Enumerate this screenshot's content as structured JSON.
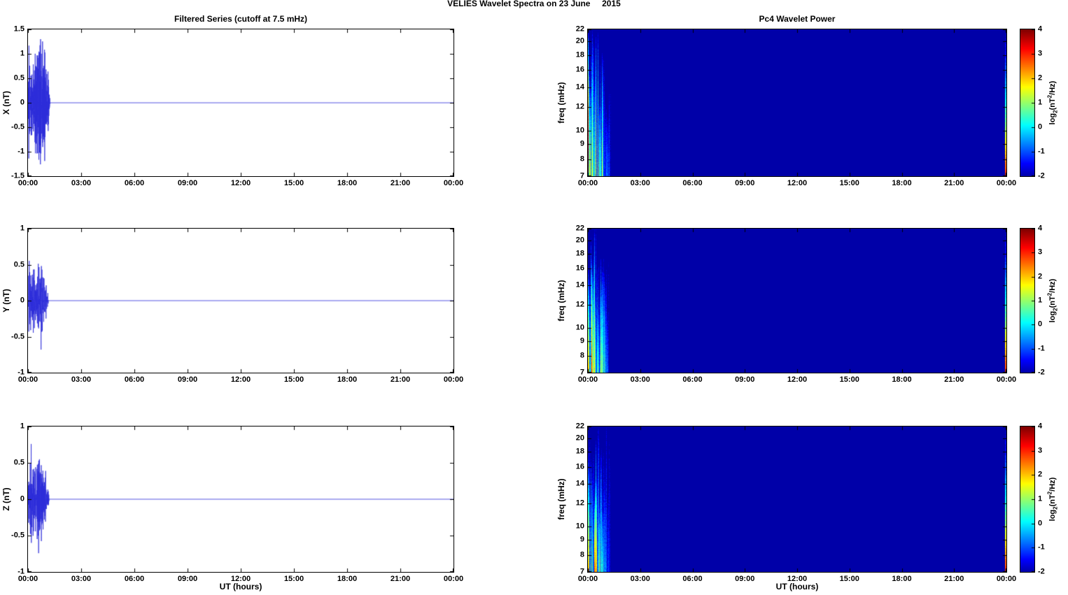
{
  "title": "VELIES Wavelet Spectra on 23 June     2015",
  "colors": {
    "line": "#2c2cd9",
    "axis": "#000000",
    "background": "#ffffff",
    "spectrogram_background": "#0000a8"
  },
  "colorbar": {
    "colormap": "jet",
    "clim": [
      -2,
      4
    ],
    "ticks": [
      4,
      3,
      2,
      1,
      0,
      -1,
      -2
    ],
    "tick_labels": [
      "4",
      "3",
      "2",
      "1",
      "0",
      "-1",
      "-2"
    ],
    "label_parts": {
      "pre": "log",
      "sub": "2",
      "mid": "(nT",
      "sup": "2",
      "post": "/Hz)"
    }
  },
  "chart_data": [
    {
      "id": "x-filtered-series",
      "type": "line",
      "title": "Filtered Series (cutoff at 7.5 mHz)",
      "ylabel": "X (nT)",
      "xlabel": "",
      "ylim": [
        -1.5,
        1.5
      ],
      "yticks": [
        1.5,
        1,
        0.5,
        0,
        -0.5,
        -1,
        -1.5
      ],
      "ytick_labels": [
        "1.5",
        "1",
        "0.5",
        "0",
        "-0.5",
        "-1",
        "-1.5"
      ],
      "x_hours": [
        0,
        24
      ],
      "xticks_hours": [
        0,
        3,
        6,
        9,
        12,
        15,
        18,
        21,
        24
      ],
      "xtick_labels": [
        "00:00",
        "03:00",
        "06:00",
        "09:00",
        "12:00",
        "15:00",
        "18:00",
        "21:00",
        "00:00"
      ],
      "burst": {
        "start_h": 0,
        "end_h": 1.25,
        "peak_nT": 1.3
      },
      "description": "Band-pass filtered X component: noisy Pc4 wave burst from 00:00 to about 01:15 UT, peak amplitude about +1.05 / -1.3 nT, exactly zero for the rest of the day"
    },
    {
      "id": "y-filtered-series",
      "type": "line",
      "title": "",
      "ylabel": "Y (nT)",
      "xlabel": "",
      "ylim": [
        -1,
        1
      ],
      "yticks": [
        1,
        0.5,
        0,
        -0.5,
        -1
      ],
      "ytick_labels": [
        "1",
        "0.5",
        "0",
        "-0.5",
        "-1"
      ],
      "x_hours": [
        0,
        24
      ],
      "xticks_hours": [
        0,
        3,
        6,
        9,
        12,
        15,
        18,
        21,
        24
      ],
      "xtick_labels": [
        "00:00",
        "03:00",
        "06:00",
        "09:00",
        "12:00",
        "15:00",
        "18:00",
        "21:00",
        "00:00"
      ],
      "burst": {
        "start_h": 0,
        "end_h": 1.15,
        "peak_nT": 0.68
      },
      "description": "Band-pass filtered Y component: noisy wave burst from 00:00 to about 01:10 UT, peak amplitude about ±0.65 nT, zero afterwards"
    },
    {
      "id": "z-filtered-series",
      "type": "line",
      "title": "",
      "ylabel": "Z (nT)",
      "xlabel": "UT (hours)",
      "ylim": [
        -1,
        1
      ],
      "yticks": [
        1,
        0.5,
        0,
        -0.5,
        -1
      ],
      "ytick_labels": [
        "1",
        "0.5",
        "0",
        "-0.5",
        "-1"
      ],
      "x_hours": [
        0,
        24
      ],
      "xticks_hours": [
        0,
        3,
        6,
        9,
        12,
        15,
        18,
        21,
        24
      ],
      "xtick_labels": [
        "00:00",
        "03:00",
        "06:00",
        "09:00",
        "12:00",
        "15:00",
        "18:00",
        "21:00",
        "00:00"
      ],
      "burst": {
        "start_h": 0,
        "end_h": 1.2,
        "peak_nT": 0.76
      },
      "description": "Band-pass filtered Z component: noisy wave burst from 00:00 to about 01:10 UT, peak amplitude about ±0.75 nT, zero afterwards"
    },
    {
      "id": "x-wavelet-power",
      "type": "heatmap",
      "title": "Pc4 Wavelet Power",
      "ylabel": "freq (mHz)",
      "xlabel": "",
      "yscale": "log",
      "ylim": [
        7,
        22
      ],
      "yticks": [
        22,
        20,
        18,
        16,
        14,
        12,
        10,
        9,
        8,
        7
      ],
      "ytick_labels": [
        "22",
        "20",
        "18",
        "16",
        "14",
        "12",
        "10",
        "9",
        "8",
        "7"
      ],
      "x_hours": [
        0,
        24
      ],
      "xtick_labels": [
        "00:00",
        "03:00",
        "06:00",
        "09:00",
        "12:00",
        "15:00",
        "18:00",
        "21:00",
        "00:00"
      ],
      "colormap": "jet",
      "clim": [
        -2,
        4
      ],
      "background_value": -2,
      "burst": {
        "start_h": 0,
        "end_h": 1.3,
        "max_log2_power": 4
      },
      "description": "Wavelet power of X: deep-blue background at log2 power -2; intense striated burst 00:00-01:15 UT, dark red (log2 power up to 4) at 7-10 mHz fading through yellow/green/cyan toward 22 mHz; thin edge artifact at right boundary"
    },
    {
      "id": "y-wavelet-power",
      "type": "heatmap",
      "title": "",
      "ylabel": "freq (mHz)",
      "xlabel": "",
      "yscale": "log",
      "ylim": [
        7,
        22
      ],
      "yticks": [
        22,
        20,
        18,
        16,
        14,
        12,
        10,
        9,
        8,
        7
      ],
      "ytick_labels": [
        "22",
        "20",
        "18",
        "16",
        "14",
        "12",
        "10",
        "9",
        "8",
        "7"
      ],
      "x_hours": [
        0,
        24
      ],
      "xtick_labels": [
        "00:00",
        "03:00",
        "06:00",
        "09:00",
        "12:00",
        "15:00",
        "18:00",
        "21:00",
        "00:00"
      ],
      "colormap": "jet",
      "clim": [
        -2,
        4
      ],
      "background_value": -2,
      "burst": {
        "start_h": 0,
        "end_h": 1.2,
        "max_log2_power": 4
      },
      "description": "Wavelet power of Y: same burst structure 00:00-01:10 UT, strongest power at lowest frequencies, blue background elsewhere"
    },
    {
      "id": "z-wavelet-power",
      "type": "heatmap",
      "title": "",
      "ylabel": "freq (mHz)",
      "xlabel": "UT (hours)",
      "yscale": "log",
      "ylim": [
        7,
        22
      ],
      "yticks": [
        22,
        20,
        18,
        16,
        14,
        12,
        10,
        9,
        8,
        7
      ],
      "ytick_labels": [
        "22",
        "20",
        "18",
        "16",
        "14",
        "12",
        "10",
        "9",
        "8",
        "7"
      ],
      "x_hours": [
        0,
        24
      ],
      "xtick_labels": [
        "00:00",
        "03:00",
        "06:00",
        "09:00",
        "12:00",
        "15:00",
        "18:00",
        "21:00",
        "00:00"
      ],
      "colormap": "jet",
      "clim": [
        -2,
        4
      ],
      "background_value": -2,
      "burst": {
        "start_h": 0,
        "end_h": 1.25,
        "max_log2_power": 4
      },
      "description": "Wavelet power of Z: same burst structure 00:00-01:10 UT, strongest power at lowest frequencies, blue background elsewhere"
    }
  ]
}
